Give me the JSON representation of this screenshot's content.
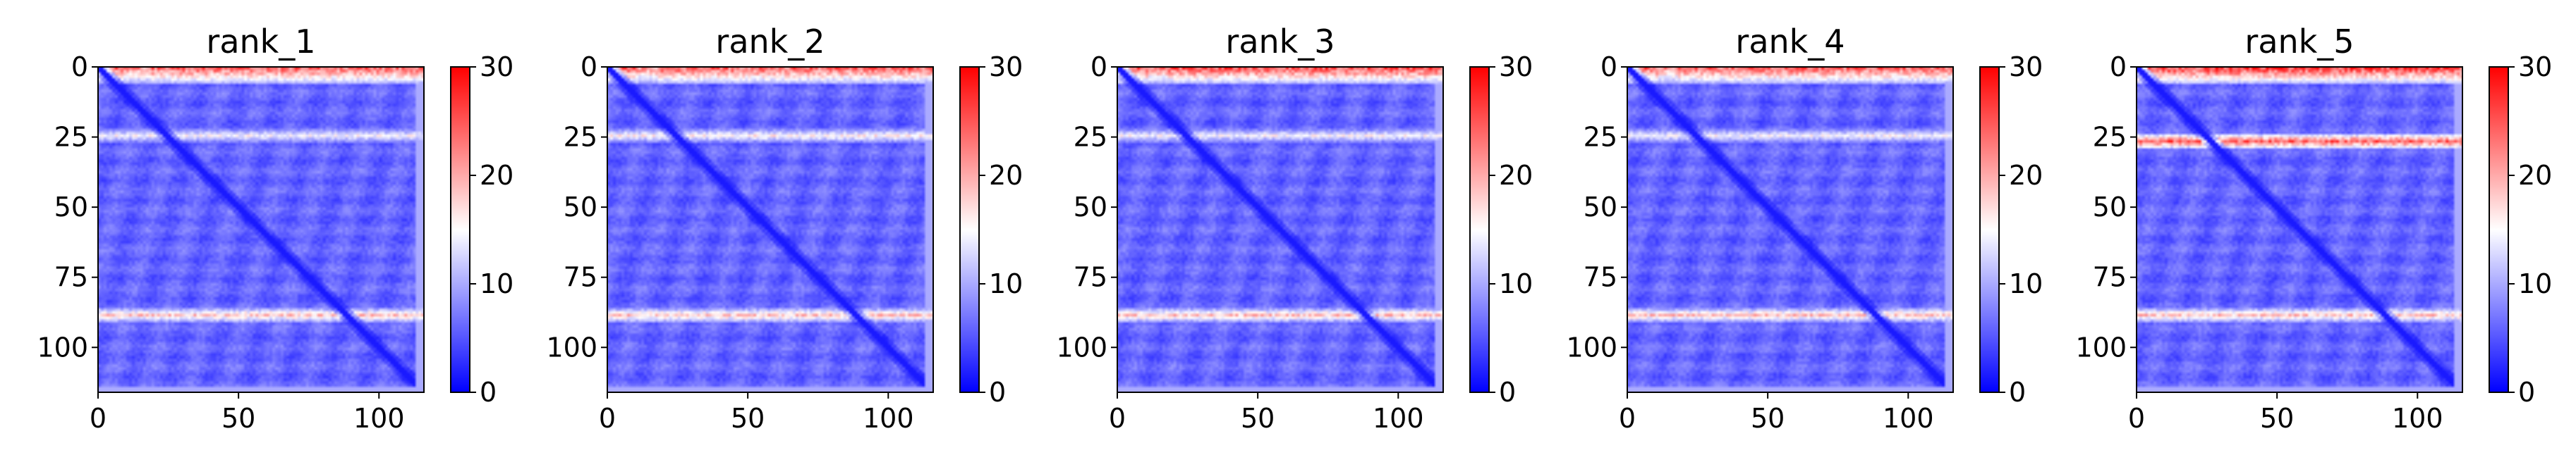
{
  "chart_data": [
    {
      "type": "heatmap",
      "title": "rank_1",
      "n": 116,
      "xticks": [
        0,
        50,
        100
      ],
      "yticks": [
        0,
        25,
        50,
        75,
        100
      ],
      "colorbar": {
        "min": 0,
        "max": 30,
        "ticks": [
          0,
          10,
          20,
          30
        ],
        "colors": [
          "#0000ff",
          "#ffffff",
          "#ff0000"
        ]
      },
      "features": {
        "diagonal": 0,
        "background": 6,
        "top_band": {
          "rows": [
            0,
            5
          ],
          "value": 24
        },
        "row_bands": [
          {
            "row": 24,
            "value": 15
          },
          {
            "row": 88,
            "value": 19
          }
        ]
      }
    },
    {
      "type": "heatmap",
      "title": "rank_2",
      "n": 116,
      "xticks": [
        0,
        50,
        100
      ],
      "yticks": [
        0,
        25,
        50,
        75,
        100
      ],
      "colorbar": {
        "min": 0,
        "max": 30,
        "ticks": [
          0,
          10,
          20,
          30
        ],
        "colors": [
          "#0000ff",
          "#ffffff",
          "#ff0000"
        ]
      },
      "features": {
        "diagonal": 0,
        "background": 6,
        "top_band": {
          "rows": [
            0,
            5
          ],
          "value": 24
        },
        "row_bands": [
          {
            "row": 24,
            "value": 16
          },
          {
            "row": 88,
            "value": 19
          }
        ]
      }
    },
    {
      "type": "heatmap",
      "title": "rank_3",
      "n": 116,
      "xticks": [
        0,
        50,
        100
      ],
      "yticks": [
        0,
        25,
        50,
        75,
        100
      ],
      "colorbar": {
        "min": 0,
        "max": 30,
        "ticks": [
          0,
          10,
          20,
          30
        ],
        "colors": [
          "#0000ff",
          "#ffffff",
          "#ff0000"
        ]
      },
      "features": {
        "diagonal": 0,
        "background": 6,
        "top_band": {
          "rows": [
            0,
            5
          ],
          "value": 25
        },
        "row_bands": [
          {
            "row": 24,
            "value": 15
          },
          {
            "row": 88,
            "value": 19
          }
        ]
      }
    },
    {
      "type": "heatmap",
      "title": "rank_4",
      "n": 116,
      "xticks": [
        0,
        50,
        100
      ],
      "yticks": [
        0,
        25,
        50,
        75,
        100
      ],
      "colorbar": {
        "min": 0,
        "max": 30,
        "ticks": [
          0,
          10,
          20,
          30
        ],
        "colors": [
          "#0000ff",
          "#ffffff",
          "#ff0000"
        ]
      },
      "features": {
        "diagonal": 0,
        "background": 6,
        "top_band": {
          "rows": [
            0,
            5
          ],
          "value": 24
        },
        "row_bands": [
          {
            "row": 24,
            "value": 15
          },
          {
            "row": 88,
            "value": 19
          }
        ]
      }
    },
    {
      "type": "heatmap",
      "title": "rank_5",
      "n": 116,
      "xticks": [
        0,
        50,
        100
      ],
      "yticks": [
        0,
        25,
        50,
        75,
        100
      ],
      "colorbar": {
        "min": 0,
        "max": 30,
        "ticks": [
          0,
          10,
          20,
          30
        ],
        "colors": [
          "#0000ff",
          "#ffffff",
          "#ff0000"
        ]
      },
      "features": {
        "diagonal": 0,
        "background": 6,
        "top_band": {
          "rows": [
            0,
            5
          ],
          "value": 26
        },
        "row_bands": [
          {
            "row": 26,
            "value": 25
          },
          {
            "row": 88,
            "value": 19
          }
        ]
      }
    }
  ]
}
